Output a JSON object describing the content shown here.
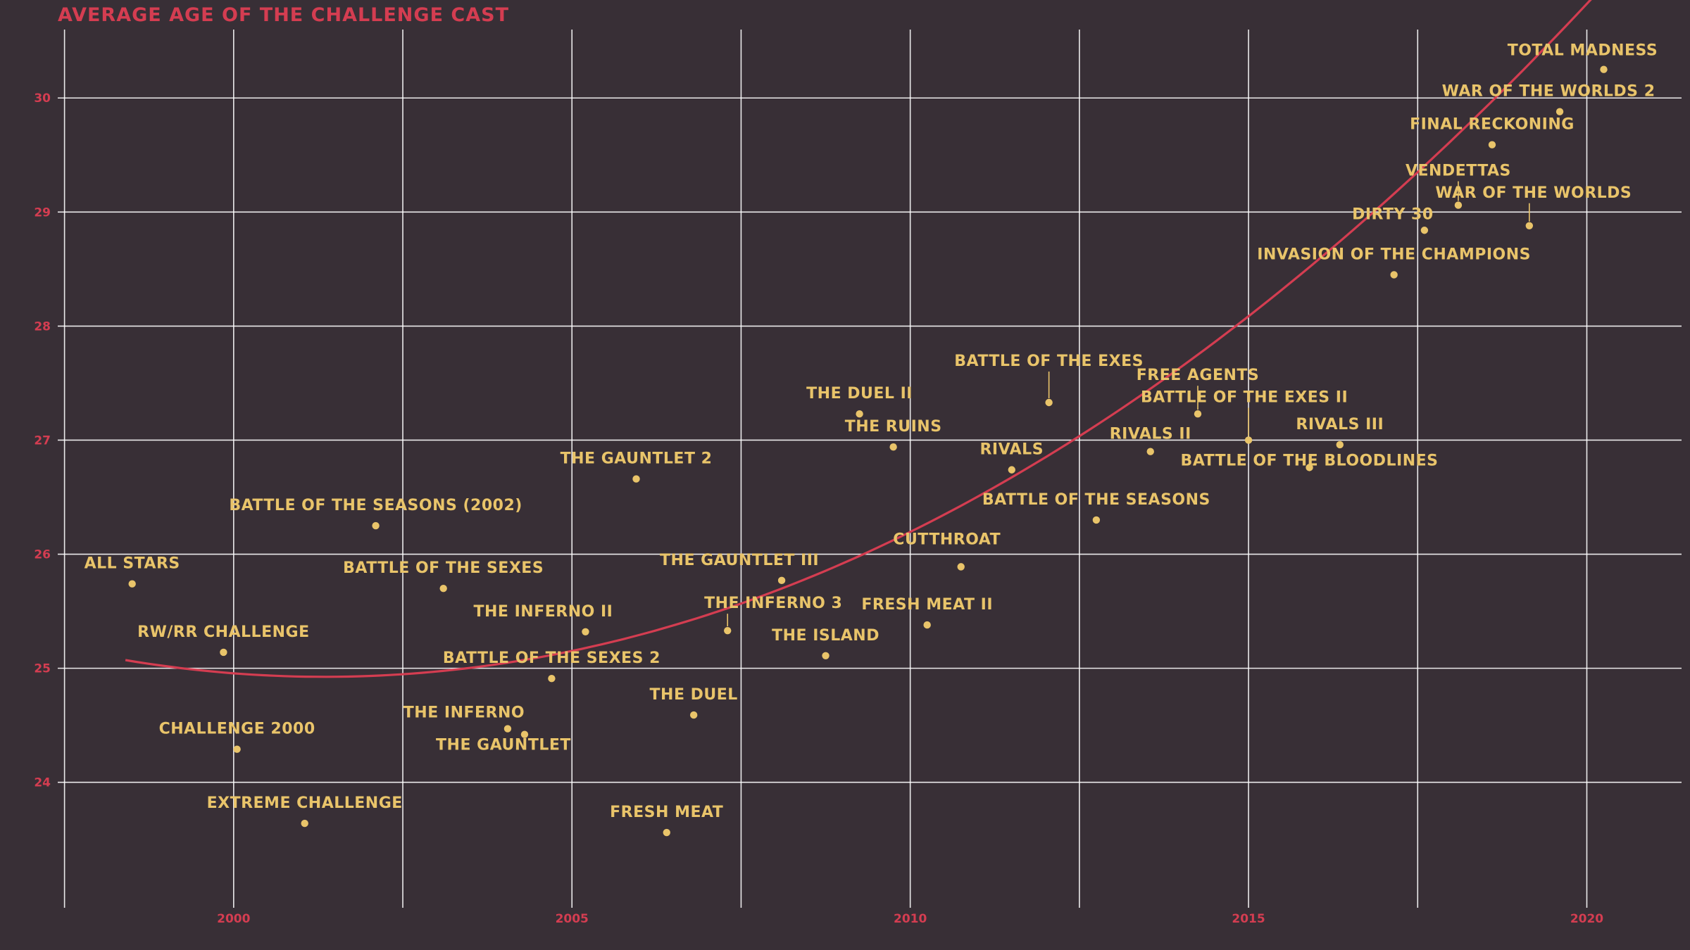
{
  "chart_data": {
    "type": "scatter",
    "title": "AVERAGE AGE OF THE CHALLENGE CAST",
    "xlabel": "",
    "ylabel": "",
    "xlim": [
      1997.4,
      2021.4
    ],
    "ylim": [
      22.9,
      30.6
    ],
    "x_ticks": [
      2000,
      2005,
      2010,
      2015,
      2020
    ],
    "y_ticks": [
      24,
      25,
      26,
      27,
      28,
      29,
      30
    ],
    "x_gridlines": [
      1997.5,
      2000,
      2002.5,
      2005,
      2007.5,
      2010,
      2012.5,
      2015,
      2017.5,
      2020
    ],
    "grid": true,
    "colors": {
      "background": "#382f36",
      "grid": "#ffffff",
      "points": "#e9c46a",
      "labels": "#e9c46a",
      "trend": "#d43d51",
      "title": "#d43d51",
      "ticks": "#d43d51"
    },
    "trend": {
      "type": "quadratic",
      "a": 0.01695,
      "b": -0.0184,
      "c": 24.93,
      "x0": 2000.8,
      "from": 1998.4,
      "to": 2020.3
    },
    "points": [
      {
        "name": "ALL STARS",
        "x": 1998.5,
        "y": 25.74
      },
      {
        "name": "RW/RR CHALLENGE",
        "x": 1999.85,
        "y": 25.14
      },
      {
        "name": "CHALLENGE 2000",
        "x": 2000.05,
        "y": 24.29
      },
      {
        "name": "EXTREME CHALLENGE",
        "x": 2001.05,
        "y": 23.64
      },
      {
        "name": "BATTLE OF THE SEASONS (2002)",
        "x": 2002.1,
        "y": 26.25
      },
      {
        "name": "BATTLE OF THE SEXES",
        "x": 2003.1,
        "y": 25.7
      },
      {
        "name": "THE INFERNO",
        "x": 2004.05,
        "y": 24.47
      },
      {
        "name": "THE GAUNTLET",
        "x": 2004.3,
        "y": 24.42
      },
      {
        "name": "BATTLE OF THE SEXES 2",
        "x": 2004.7,
        "y": 24.91
      },
      {
        "name": "THE INFERNO II",
        "x": 2005.2,
        "y": 25.32
      },
      {
        "name": "THE GAUNTLET 2",
        "x": 2005.95,
        "y": 26.66
      },
      {
        "name": "FRESH MEAT",
        "x": 2006.4,
        "y": 23.56
      },
      {
        "name": "THE DUEL",
        "x": 2006.8,
        "y": 24.59
      },
      {
        "name": "THE INFERNO 3",
        "x": 2007.3,
        "y": 25.33
      },
      {
        "name": "THE GAUNTLET III",
        "x": 2008.1,
        "y": 25.77
      },
      {
        "name": "THE ISLAND",
        "x": 2008.75,
        "y": 25.11
      },
      {
        "name": "THE DUEL II",
        "x": 2009.25,
        "y": 27.23
      },
      {
        "name": "THE RUINS",
        "x": 2009.75,
        "y": 26.94
      },
      {
        "name": "FRESH MEAT II",
        "x": 2010.25,
        "y": 25.38
      },
      {
        "name": "CUTTHROAT",
        "x": 2010.75,
        "y": 25.89
      },
      {
        "name": "RIVALS",
        "x": 2011.5,
        "y": 26.74
      },
      {
        "name": "BATTLE OF THE EXES",
        "x": 2012.05,
        "y": 27.33
      },
      {
        "name": "BATTLE OF THE SEASONS",
        "x": 2012.75,
        "y": 26.3
      },
      {
        "name": "RIVALS II",
        "x": 2013.55,
        "y": 26.9
      },
      {
        "name": "FREE AGENTS",
        "x": 2014.25,
        "y": 27.23
      },
      {
        "name": "BATTLE OF THE EXES II",
        "x": 2015.0,
        "y": 27.0
      },
      {
        "name": "BATTLE OF THE BLOODLINES",
        "x": 2015.9,
        "y": 26.76
      },
      {
        "name": "RIVALS III",
        "x": 2016.35,
        "y": 26.96
      },
      {
        "name": "INVASION OF THE CHAMPIONS",
        "x": 2017.15,
        "y": 28.45
      },
      {
        "name": "DIRTY 30",
        "x": 2017.6,
        "y": 28.84
      },
      {
        "name": "VENDETTAS",
        "x": 2018.1,
        "y": 29.06
      },
      {
        "name": "FINAL RECKONING",
        "x": 2018.6,
        "y": 29.59
      },
      {
        "name": "WAR OF THE WORLDS",
        "x": 2019.15,
        "y": 28.88
      },
      {
        "name": "WAR OF THE WORLDS 2",
        "x": 2019.6,
        "y": 29.88
      },
      {
        "name": "TOTAL MADNESS",
        "x": 2020.25,
        "y": 30.25
      }
    ]
  }
}
